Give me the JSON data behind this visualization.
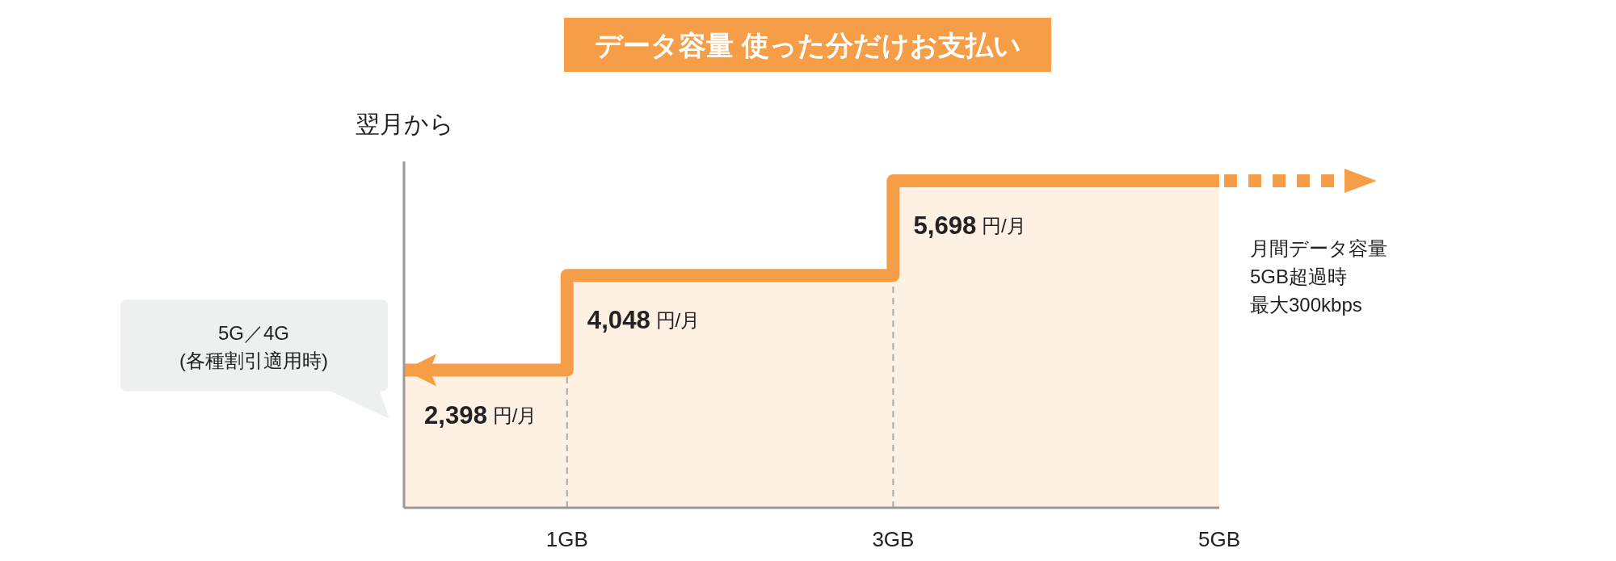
{
  "chart_data": {
    "type": "area",
    "title": "データ容量 使った分だけお支払い",
    "ylabel": "翌月から",
    "x": [
      0,
      1,
      1,
      3,
      3,
      5
    ],
    "values": [
      2398,
      2398,
      4048,
      4048,
      5698,
      5698
    ],
    "color": "#f59e47",
    "xlim": [
      0,
      5
    ],
    "xticks": [
      {
        "value": 1,
        "label": "1GB"
      },
      {
        "value": 3,
        "label": "3GB"
      },
      {
        "value": 5,
        "label": "5GB"
      }
    ],
    "value_labels": [
      "**2,398** 円/月",
      null,
      "**4,048** 円/月",
      null,
      "**5,698** 円/月",
      null
    ],
    "ref_lines": [
      {
        "axis": "x",
        "value": 1,
        "color": "#aaaaaa",
        "line_style": "dashed"
      },
      {
        "axis": "x",
        "value": 3,
        "color": "#aaaaaa",
        "line_style": "dashed"
      }
    ],
    "annotations": [
      "5G／4G",
      "(各種割引適用時)",
      "月間データ容量",
      "5GB超過時",
      "最大300kbps"
    ]
  }
}
